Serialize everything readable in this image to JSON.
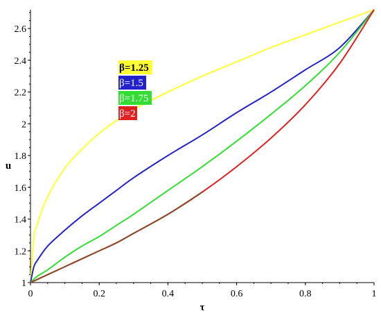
{
  "chart_data": {
    "type": "line",
    "title": "",
    "xlabel": "τ",
    "ylabel": "u",
    "xlim": [
      0,
      1
    ],
    "ylim": [
      1,
      2.71828
    ],
    "x_ticks": [
      "0",
      "0.2",
      "0.4",
      "0.6",
      "0.8",
      "1"
    ],
    "y_ticks": [
      "1",
      "1.2",
      "1.4",
      "1.6",
      "1.8",
      "2",
      "2.2",
      "2.4",
      "2.6"
    ],
    "grid": false,
    "legend_position": "upper-left",
    "series": [
      {
        "name": "β=1.25",
        "color": "#ffff33",
        "x": [
          0,
          0.01,
          0.02,
          0.05,
          0.1,
          0.15,
          0.2,
          0.25,
          0.3,
          0.4,
          0.5,
          0.6,
          0.7,
          0.8,
          0.9,
          1.0
        ],
        "y": [
          1.0,
          1.28,
          1.37,
          1.54,
          1.72,
          1.84,
          1.94,
          2.02,
          2.09,
          2.2,
          2.3,
          2.39,
          2.48,
          2.56,
          2.64,
          2.718
        ]
      },
      {
        "name": "β=1.5",
        "color": "#2222cc",
        "x": [
          0,
          0.01,
          0.02,
          0.05,
          0.1,
          0.15,
          0.2,
          0.25,
          0.3,
          0.4,
          0.5,
          0.6,
          0.7,
          0.8,
          0.9,
          1.0
        ],
        "y": [
          1.0,
          1.1,
          1.14,
          1.23,
          1.33,
          1.42,
          1.5,
          1.58,
          1.66,
          1.8,
          1.93,
          2.07,
          2.2,
          2.34,
          2.48,
          2.718
        ]
      },
      {
        "name": "β=1.75",
        "color": "#33dd33",
        "x": [
          0,
          0.02,
          0.05,
          0.1,
          0.15,
          0.2,
          0.25,
          0.3,
          0.4,
          0.5,
          0.6,
          0.7,
          0.8,
          0.9,
          1.0
        ],
        "y": [
          1.0,
          1.04,
          1.08,
          1.16,
          1.23,
          1.29,
          1.36,
          1.43,
          1.58,
          1.73,
          1.89,
          2.06,
          2.24,
          2.45,
          2.718
        ]
      },
      {
        "name": "β=2",
        "color": "#dd2222",
        "x": [
          0,
          0.02,
          0.05,
          0.1,
          0.15,
          0.2,
          0.25,
          0.3,
          0.4,
          0.5,
          0.6,
          0.7,
          0.8,
          0.9,
          1.0
        ],
        "y": [
          1.0,
          1.02,
          1.05,
          1.1,
          1.15,
          1.2,
          1.25,
          1.31,
          1.43,
          1.57,
          1.73,
          1.91,
          2.12,
          2.38,
          2.718
        ]
      }
    ],
    "overlap_color": "#8a4a2a"
  }
}
